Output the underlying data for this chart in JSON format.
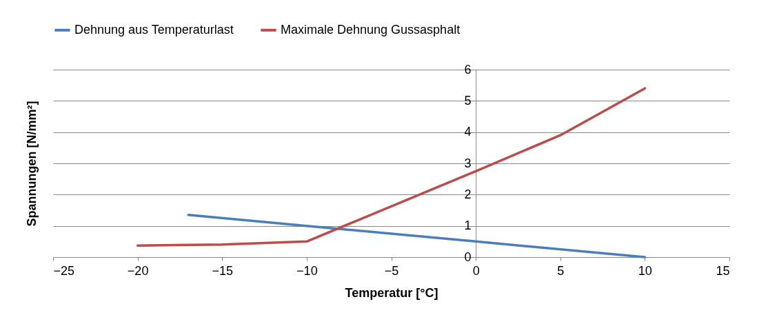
{
  "chart_data": {
    "type": "line",
    "xlabel": "Temperatur [°C]",
    "ylabel": "Spannungen [N/mm²]",
    "xlim": [
      -25,
      15
    ],
    "xticks": [
      -25,
      -20,
      -15,
      -10,
      -5,
      0,
      5,
      10,
      15
    ],
    "ylim": [
      0,
      6
    ],
    "yticks": [
      0,
      1,
      2,
      3,
      4,
      5,
      6
    ],
    "grid": "y",
    "legend": "top",
    "marker": "none",
    "line_style": "solid",
    "series": [
      {
        "name": "Dehnung aus Temperaturlast",
        "color": "#4a7ebb",
        "x": [
          -17,
          -10,
          0,
          10
        ],
        "values": [
          1.35,
          1.0,
          0.5,
          0
        ]
      },
      {
        "name": "Maximale Dehnung Gussasphalt",
        "color": "#be4b48",
        "x": [
          -20,
          -15,
          -10,
          0,
          5,
          10
        ],
        "values": [
          0.37,
          0.4,
          0.5,
          2.75,
          3.9,
          5.4
        ]
      }
    ]
  }
}
